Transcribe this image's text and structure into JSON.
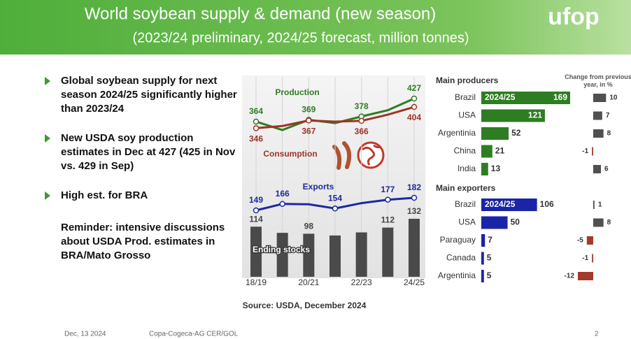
{
  "header": {
    "title": "World soybean supply & demand (new season)",
    "subtitle": "(2023/24 preliminary, 2024/25 forecast, million tonnes)",
    "logo": "ufop"
  },
  "bullets": [
    "Global soybean supply for next season 2024/25 significantly higher than 2023/24",
    "New USDA soy production estimates in Dec at 427 (425 in Nov vs. 429 in Sep)",
    "High est. for BRA"
  ],
  "note": "Reminder: intensive discussions about USDA Prod. estimates in BRA/Mato Grosso",
  "chart_data": [
    {
      "type": "line",
      "categories": [
        "18/19",
        null,
        "20/21",
        null,
        "22/23",
        null,
        "24/25"
      ],
      "series": [
        {
          "name": "Production",
          "color": "#2e7d22",
          "values": [
            364,
            341,
            369,
            360,
            378,
            395,
            427
          ],
          "value_labels": [
            "364",
            null,
            "369",
            null,
            "378",
            null,
            "427"
          ]
        },
        {
          "name": "Consumption",
          "color": "#9e3426",
          "values": [
            346,
            352,
            367,
            364,
            366,
            383,
            404
          ],
          "value_labels": [
            "346",
            null,
            "367",
            null,
            "366",
            null,
            "404"
          ]
        },
        {
          "name": "Exports",
          "color": "#1c2a9e",
          "values": [
            149,
            166,
            165,
            154,
            168,
            177,
            182
          ],
          "value_labels": [
            "149",
            "166",
            null,
            "154",
            null,
            "177",
            "182"
          ]
        },
        {
          "name": "Ending stocks",
          "type": "bar",
          "color": "#4a4a4a",
          "values": [
            114,
            100,
            98,
            94,
            101,
            112,
            132
          ],
          "value_labels": [
            "114",
            null,
            "98",
            null,
            null,
            "112",
            "132"
          ]
        }
      ],
      "grid": true
    },
    {
      "type": "hbar",
      "title": "Main producers",
      "categories": [
        "Brazil",
        "USA",
        "Argentinia",
        "China",
        "India"
      ],
      "series": [
        {
          "name": "2024/25",
          "color": "#2e7d22",
          "values": [
            169,
            121,
            52,
            21,
            13
          ]
        },
        {
          "name": "Change from previous year, in %",
          "color": "#505050",
          "negative_color": "#a33a2c",
          "values": [
            10,
            7,
            8,
            -1,
            6
          ]
        }
      ]
    },
    {
      "type": "hbar",
      "title": "Main exporters",
      "categories": [
        "Brazil",
        "USA",
        "Paraguay",
        "Canada",
        "Argentinia"
      ],
      "series": [
        {
          "name": "2024/25",
          "color": "#1a24a6",
          "values": [
            106,
            50,
            7,
            5,
            5
          ]
        },
        {
          "color": "#505050",
          "negative_color": "#a33a2c",
          "values": [
            1,
            8,
            -5,
            -1,
            -12
          ]
        }
      ]
    }
  ],
  "source": "Source: USDA, December 2024",
  "footer": {
    "date": "Dec, 13 2024",
    "org": "Copa-Cogeca-AG CER/GOL",
    "page": "2"
  }
}
